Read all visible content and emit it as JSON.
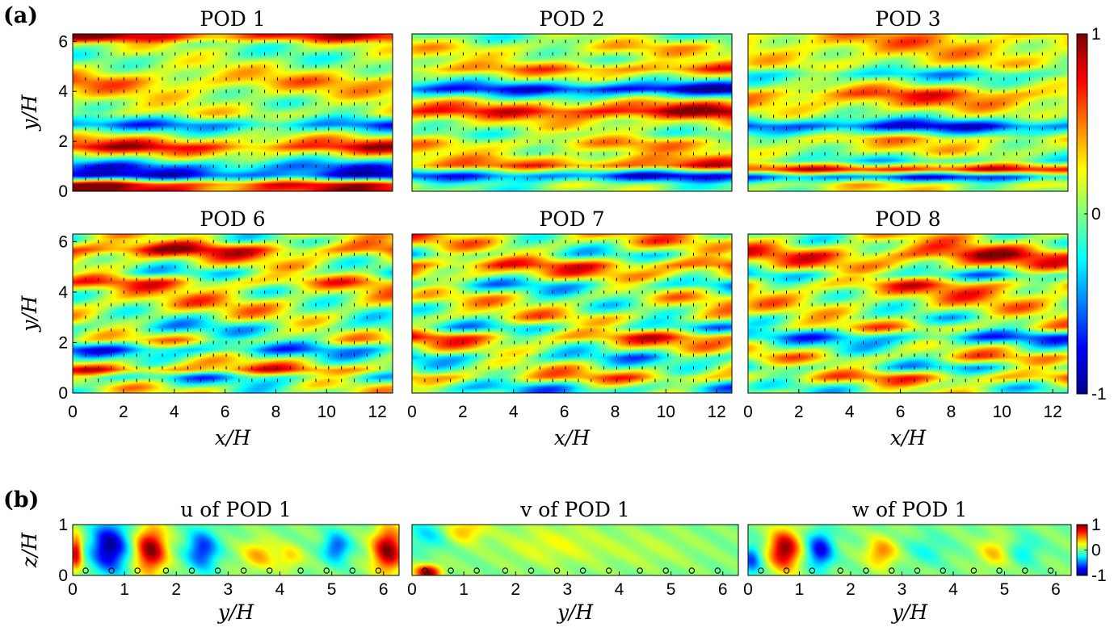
{
  "panel_labels": {
    "a": "(a)",
    "b": "(b)"
  },
  "colormap": {
    "name": "jet",
    "stops": [
      "#00008f",
      "#0000ff",
      "#0080ff",
      "#00ffff",
      "#80ff80",
      "#ffff00",
      "#ff8000",
      "#ff0000",
      "#800000"
    ]
  },
  "chart_data": [
    {
      "type": "heatmap",
      "title": "POD 1",
      "panel": "a",
      "xlabel": "",
      "ylabel": "y/H",
      "xlim": [
        0,
        12.6
      ],
      "ylim": [
        0,
        6.3
      ],
      "xticks": [],
      "yticks": [
        "0",
        "2",
        "4",
        "6"
      ],
      "orientation": "horizontal-streaks",
      "profile_y": [
        0.25,
        0.6,
        1.0,
        1.3,
        1.75,
        2.2,
        2.65,
        3.1,
        3.6,
        4.0,
        4.4,
        4.9,
        5.4,
        5.9,
        6.2
      ],
      "profile_v": [
        0.9,
        -0.9,
        -0.6,
        0.0,
        0.9,
        0.2,
        -0.6,
        0.2,
        0.1,
        0.3,
        0.5,
        0.2,
        0.0,
        0.1,
        0.9
      ]
    },
    {
      "type": "heatmap",
      "title": "POD 2",
      "panel": "a",
      "xlabel": "",
      "ylabel": "",
      "xlim": [
        0,
        12.6
      ],
      "ylim": [
        0,
        6.3
      ],
      "xticks": [],
      "yticks": [],
      "orientation": "horizontal-streaks",
      "profile_y": [
        0.25,
        0.6,
        1.0,
        1.5,
        1.9,
        2.3,
        2.8,
        3.2,
        3.6,
        4.1,
        4.5,
        4.9,
        5.3,
        5.8,
        6.2
      ],
      "profile_v": [
        0.0,
        -0.8,
        0.7,
        0.2,
        0.4,
        0.0,
        0.3,
        0.95,
        0.3,
        -0.95,
        0.0,
        0.6,
        0.1,
        0.3,
        0.0
      ]
    },
    {
      "type": "heatmap",
      "title": "POD 3",
      "panel": "a",
      "xlabel": "",
      "ylabel": "",
      "xlim": [
        0,
        12.6
      ],
      "ylim": [
        0,
        6.3
      ],
      "xticks": [],
      "yticks": [],
      "orientation": "horizontal-streaks",
      "profile_y": [
        0.25,
        0.55,
        0.85,
        1.2,
        1.6,
        2.1,
        2.6,
        3.0,
        3.5,
        3.9,
        4.3,
        4.7,
        5.1,
        5.5,
        6.0
      ],
      "profile_v": [
        0.2,
        -0.7,
        0.85,
        -0.2,
        0.2,
        0.3,
        -0.8,
        0.0,
        0.4,
        0.6,
        0.1,
        -0.3,
        0.2,
        0.3,
        0.4
      ]
    },
    {
      "type": "heatmap",
      "title": "POD 6",
      "panel": "a",
      "xlabel": "",
      "ylabel": "y/H",
      "xlim": [
        0,
        12.6
      ],
      "ylim": [
        0,
        6.3
      ],
      "xticks": [],
      "yticks": [
        "0",
        "2",
        "4",
        "6"
      ],
      "orientation": "horizontal-streaks",
      "profile_y": [
        0.2,
        0.6,
        0.9,
        1.3,
        1.7,
        2.1,
        2.6,
        3.0,
        3.5,
        4.0,
        4.4,
        4.8,
        5.3,
        5.7,
        6.1
      ],
      "profile_v": [
        0.1,
        -0.3,
        0.6,
        0.1,
        -0.5,
        0.2,
        -0.2,
        0.1,
        0.3,
        0.2,
        0.5,
        -0.1,
        0.3,
        0.8,
        0.1
      ]
    },
    {
      "type": "heatmap",
      "title": "POD 7",
      "panel": "a",
      "xlabel": "",
      "ylabel": "",
      "xlim": [
        0,
        12.6
      ],
      "ylim": [
        0,
        6.3
      ],
      "xticks": [],
      "yticks": [],
      "orientation": "horizontal-streaks",
      "profile_y": [
        0.2,
        0.6,
        1.0,
        1.4,
        1.8,
        2.2,
        2.6,
        3.0,
        3.4,
        3.8,
        4.3,
        4.7,
        5.1,
        5.5,
        6.0
      ],
      "profile_v": [
        -0.3,
        0.5,
        0.1,
        -0.3,
        0.2,
        0.6,
        -0.2,
        0.3,
        0.1,
        0.2,
        -0.3,
        0.4,
        0.7,
        -0.1,
        0.3
      ]
    },
    {
      "type": "heatmap",
      "title": "POD 8",
      "panel": "a",
      "xlabel": "",
      "ylabel": "",
      "xlim": [
        0,
        12.6
      ],
      "ylim": [
        0,
        6.3
      ],
      "xticks": [],
      "yticks": [],
      "orientation": "horizontal-streaks",
      "profile_y": [
        0.2,
        0.6,
        1.0,
        1.4,
        1.8,
        2.2,
        2.6,
        3.0,
        3.4,
        3.8,
        4.3,
        4.7,
        5.1,
        5.5,
        6.0
      ],
      "profile_v": [
        0.0,
        0.5,
        -0.2,
        0.3,
        0.0,
        -0.5,
        0.3,
        0.0,
        0.2,
        0.3,
        0.5,
        -0.2,
        0.4,
        0.7,
        0.2
      ]
    },
    {
      "type": "heatmap",
      "title": "u of POD 1",
      "panel": "b",
      "xlabel": "y/H",
      "ylabel": "z/H",
      "xlim": [
        0,
        6.3
      ],
      "ylim": [
        0,
        1
      ],
      "xticks": [
        "0",
        "1",
        "2",
        "3",
        "4",
        "5",
        "6"
      ],
      "yticks": [
        "0",
        "1"
      ],
      "orientation": "vertical-blobs",
      "blobs": [
        {
          "x": 0.05,
          "z": 0.45,
          "v": 0.9,
          "rx": 0.12,
          "rz": 0.35
        },
        {
          "x": 0.7,
          "z": 0.55,
          "v": -1.0,
          "rx": 0.35,
          "rz": 0.5
        },
        {
          "x": 1.5,
          "z": 0.5,
          "v": 1.0,
          "rx": 0.3,
          "rz": 0.45
        },
        {
          "x": 2.5,
          "z": 0.5,
          "v": -0.7,
          "rx": 0.3,
          "rz": 0.4
        },
        {
          "x": 3.6,
          "z": 0.4,
          "v": 0.4,
          "rx": 0.35,
          "rz": 0.3
        },
        {
          "x": 4.2,
          "z": 0.35,
          "v": 0.3,
          "rx": 0.25,
          "rz": 0.25
        },
        {
          "x": 5.1,
          "z": 0.55,
          "v": -0.6,
          "rx": 0.25,
          "rz": 0.3
        },
        {
          "x": 6.1,
          "z": 0.5,
          "v": 1.0,
          "rx": 0.3,
          "rz": 0.45
        }
      ],
      "markers_x": [
        0.25,
        0.75,
        1.25,
        1.8,
        2.3,
        2.8,
        3.3,
        3.8,
        4.4,
        4.9,
        5.4,
        5.9
      ]
    },
    {
      "type": "heatmap",
      "title": "v of POD 1",
      "panel": "b",
      "xlabel": "y/H",
      "ylabel": "",
      "xlim": [
        0,
        6.3
      ],
      "ylim": [
        0,
        1
      ],
      "xticks": [
        "0",
        "1",
        "2",
        "3",
        "4",
        "5",
        "6"
      ],
      "yticks": [],
      "orientation": "vertical-blobs",
      "blobs": [
        {
          "x": 0.3,
          "z": 0.05,
          "v": 1.0,
          "rx": 0.25,
          "rz": 0.15
        },
        {
          "x": 1.0,
          "z": 0.9,
          "v": 0.4,
          "rx": 0.4,
          "rz": 0.25
        },
        {
          "x": 0.3,
          "z": 0.8,
          "v": -0.3,
          "rx": 0.4,
          "rz": 0.3
        },
        {
          "x": 2.7,
          "z": 0.6,
          "v": 0.2,
          "rx": 1.0,
          "rz": 0.4
        },
        {
          "x": 4.6,
          "z": 0.5,
          "v": 0.1,
          "rx": 1.0,
          "rz": 0.4
        }
      ],
      "markers_x": [
        0.25,
        0.75,
        1.25,
        1.8,
        2.3,
        2.8,
        3.3,
        3.8,
        4.4,
        4.9,
        5.4,
        5.9
      ]
    },
    {
      "type": "heatmap",
      "title": "w of POD 1",
      "panel": "b",
      "xlabel": "y/H",
      "ylabel": "",
      "xlim": [
        0,
        6.3
      ],
      "ylim": [
        0,
        1
      ],
      "xticks": [
        "0",
        "1",
        "2",
        "3",
        "4",
        "5",
        "6"
      ],
      "yticks": [],
      "orientation": "vertical-blobs",
      "blobs": [
        {
          "x": 0.05,
          "z": 0.3,
          "v": -0.6,
          "rx": 0.2,
          "rz": 0.3
        },
        {
          "x": 0.7,
          "z": 0.5,
          "v": 1.0,
          "rx": 0.3,
          "rz": 0.4
        },
        {
          "x": 1.4,
          "z": 0.5,
          "v": -0.8,
          "rx": 0.25,
          "rz": 0.35
        },
        {
          "x": 2.6,
          "z": 0.45,
          "v": 0.5,
          "rx": 0.3,
          "rz": 0.3
        },
        {
          "x": 3.5,
          "z": 0.5,
          "v": -0.2,
          "rx": 0.4,
          "rz": 0.3
        },
        {
          "x": 4.8,
          "z": 0.45,
          "v": 0.35,
          "rx": 0.3,
          "rz": 0.3
        },
        {
          "x": 5.4,
          "z": 0.5,
          "v": -0.25,
          "rx": 0.3,
          "rz": 0.3
        }
      ],
      "markers_x": [
        0.25,
        0.75,
        1.25,
        1.8,
        2.3,
        2.8,
        3.3,
        3.8,
        4.4,
        4.9,
        5.4,
        5.9
      ]
    }
  ],
  "bottom_xaxis_a": {
    "xlabel": "x/H",
    "xticks": [
      "0",
      "2",
      "4",
      "6",
      "8",
      "10",
      "12"
    ]
  },
  "colorbar_a": {
    "ticks": [
      "1",
      "0",
      "-1"
    ],
    "range": [
      -1,
      1
    ]
  },
  "colorbar_b": {
    "ticks": [
      "1",
      "0",
      "-1"
    ],
    "range": [
      -1,
      1
    ]
  }
}
